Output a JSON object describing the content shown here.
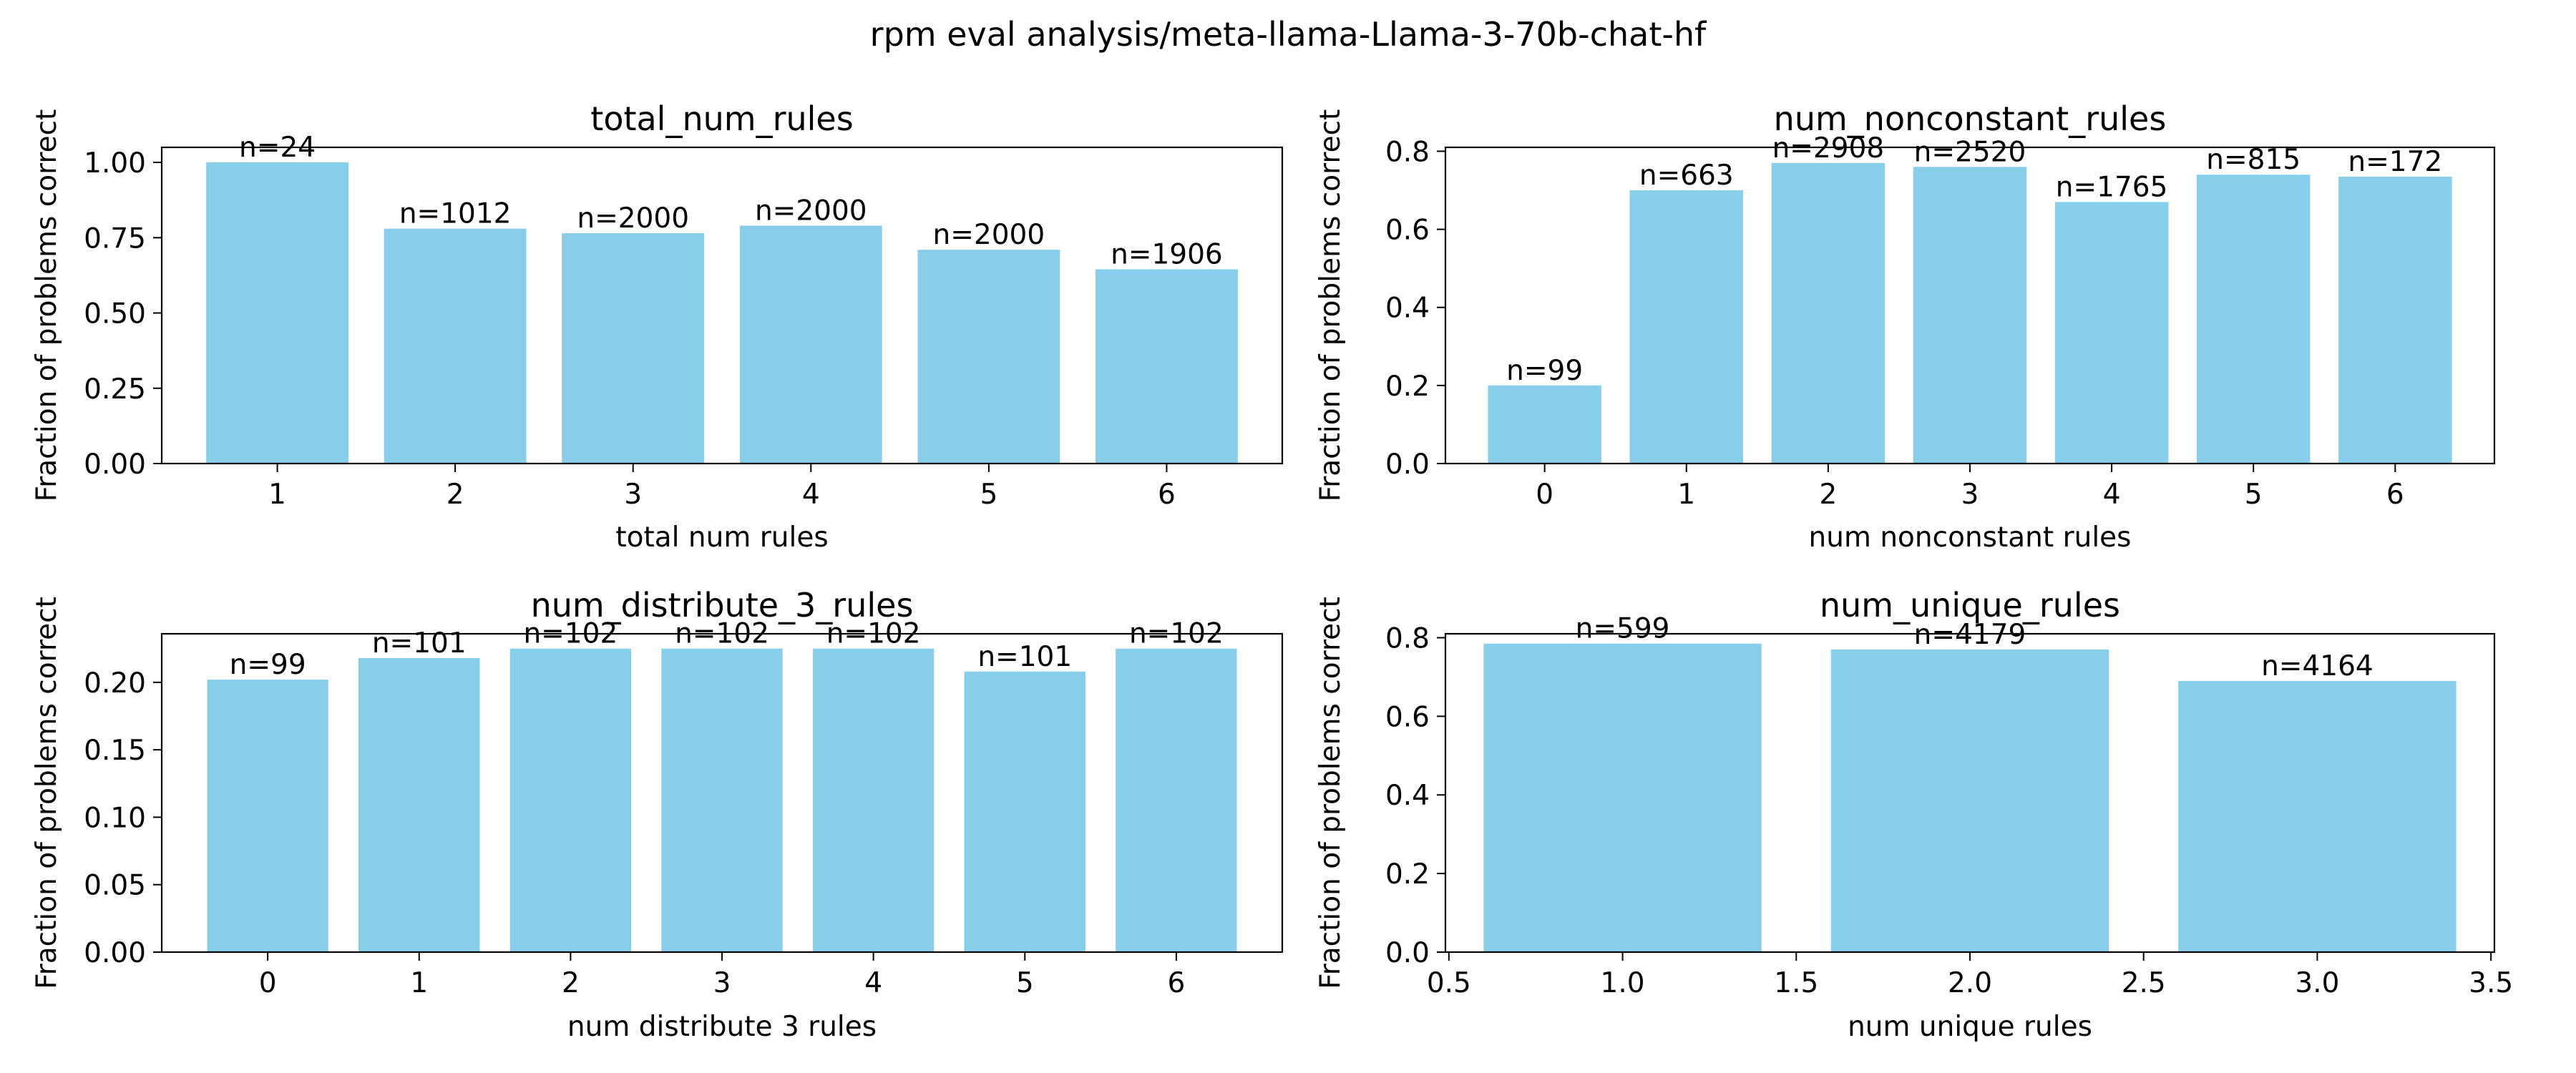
{
  "figure": {
    "title": "rpm eval analysis/meta-llama-Llama-3-70b-chat-hf",
    "bar_color": "#87ceeb"
  },
  "chart_data": [
    {
      "type": "bar",
      "title": "total_num_rules",
      "xlabel": "total num rules",
      "ylabel": "Fraction of problems correct",
      "categories": [
        1,
        2,
        3,
        4,
        5,
        6
      ],
      "values": [
        1.0,
        0.78,
        0.765,
        0.79,
        0.71,
        0.645
      ],
      "labels": [
        "n=24",
        "n=1012",
        "n=2000",
        "n=2000",
        "n=2000",
        "n=1906"
      ],
      "xlim": [
        0.35,
        6.65
      ],
      "ylim": [
        0,
        1.05
      ],
      "xticks": [
        1,
        2,
        3,
        4,
        5,
        6
      ],
      "xtick_labels": [
        "1",
        "2",
        "3",
        "4",
        "5",
        "6"
      ],
      "yticks": [
        0,
        0.25,
        0.5,
        0.75,
        1.0
      ],
      "ytick_labels": [
        "0.00",
        "0.25",
        "0.50",
        "0.75",
        "1.00"
      ],
      "bar_width": 0.8
    },
    {
      "type": "bar",
      "title": "num_nonconstant_rules",
      "xlabel": "num nonconstant rules",
      "ylabel": "Fraction of problems correct",
      "categories": [
        0,
        1,
        2,
        3,
        4,
        5,
        6
      ],
      "values": [
        0.2,
        0.7,
        0.77,
        0.76,
        0.67,
        0.74,
        0.735
      ],
      "labels": [
        "n=99",
        "n=663",
        "n=2908",
        "n=2520",
        "n=1765",
        "n=815",
        "n=172"
      ],
      "xlim": [
        -0.7,
        6.7
      ],
      "ylim": [
        0,
        0.81
      ],
      "xticks": [
        0,
        1,
        2,
        3,
        4,
        5,
        6
      ],
      "xtick_labels": [
        "0",
        "1",
        "2",
        "3",
        "4",
        "5",
        "6"
      ],
      "yticks": [
        0,
        0.2,
        0.4,
        0.6,
        0.8
      ],
      "ytick_labels": [
        "0.0",
        "0.2",
        "0.4",
        "0.6",
        "0.8"
      ],
      "bar_width": 0.8
    },
    {
      "type": "bar",
      "title": "num_distribute_3_rules",
      "xlabel": "num distribute 3 rules",
      "ylabel": "Fraction of problems correct",
      "categories": [
        0,
        1,
        2,
        3,
        4,
        5,
        6
      ],
      "values": [
        0.202,
        0.218,
        0.225,
        0.225,
        0.225,
        0.208,
        0.225
      ],
      "labels": [
        "n=99",
        "n=101",
        "n=102",
        "n=102",
        "n=102",
        "n=101",
        "n=102"
      ],
      "xlim": [
        -0.7,
        6.7
      ],
      "ylim": [
        0,
        0.236
      ],
      "xticks": [
        0,
        1,
        2,
        3,
        4,
        5,
        6
      ],
      "xtick_labels": [
        "0",
        "1",
        "2",
        "3",
        "4",
        "5",
        "6"
      ],
      "yticks": [
        0,
        0.05,
        0.1,
        0.15,
        0.2
      ],
      "ytick_labels": [
        "0.00",
        "0.05",
        "0.10",
        "0.15",
        "0.20"
      ],
      "bar_width": 0.8
    },
    {
      "type": "bar",
      "title": "num_unique_rules",
      "xlabel": "num unique rules",
      "ylabel": "Fraction of problems correct",
      "categories": [
        1,
        2,
        3
      ],
      "values": [
        0.785,
        0.77,
        0.69
      ],
      "labels": [
        "n=599",
        "n=4179",
        "n=4164"
      ],
      "xlim": [
        0.49,
        3.51
      ],
      "ylim": [
        0,
        0.81
      ],
      "xticks": [
        0.5,
        1.0,
        1.5,
        2.0,
        2.5,
        3.0,
        3.5
      ],
      "xtick_labels": [
        "0.5",
        "1.0",
        "1.5",
        "2.0",
        "2.5",
        "3.0",
        "3.5"
      ],
      "yticks": [
        0,
        0.2,
        0.4,
        0.6,
        0.8
      ],
      "ytick_labels": [
        "0.0",
        "0.2",
        "0.4",
        "0.6",
        "0.8"
      ],
      "bar_width": 0.8
    }
  ]
}
